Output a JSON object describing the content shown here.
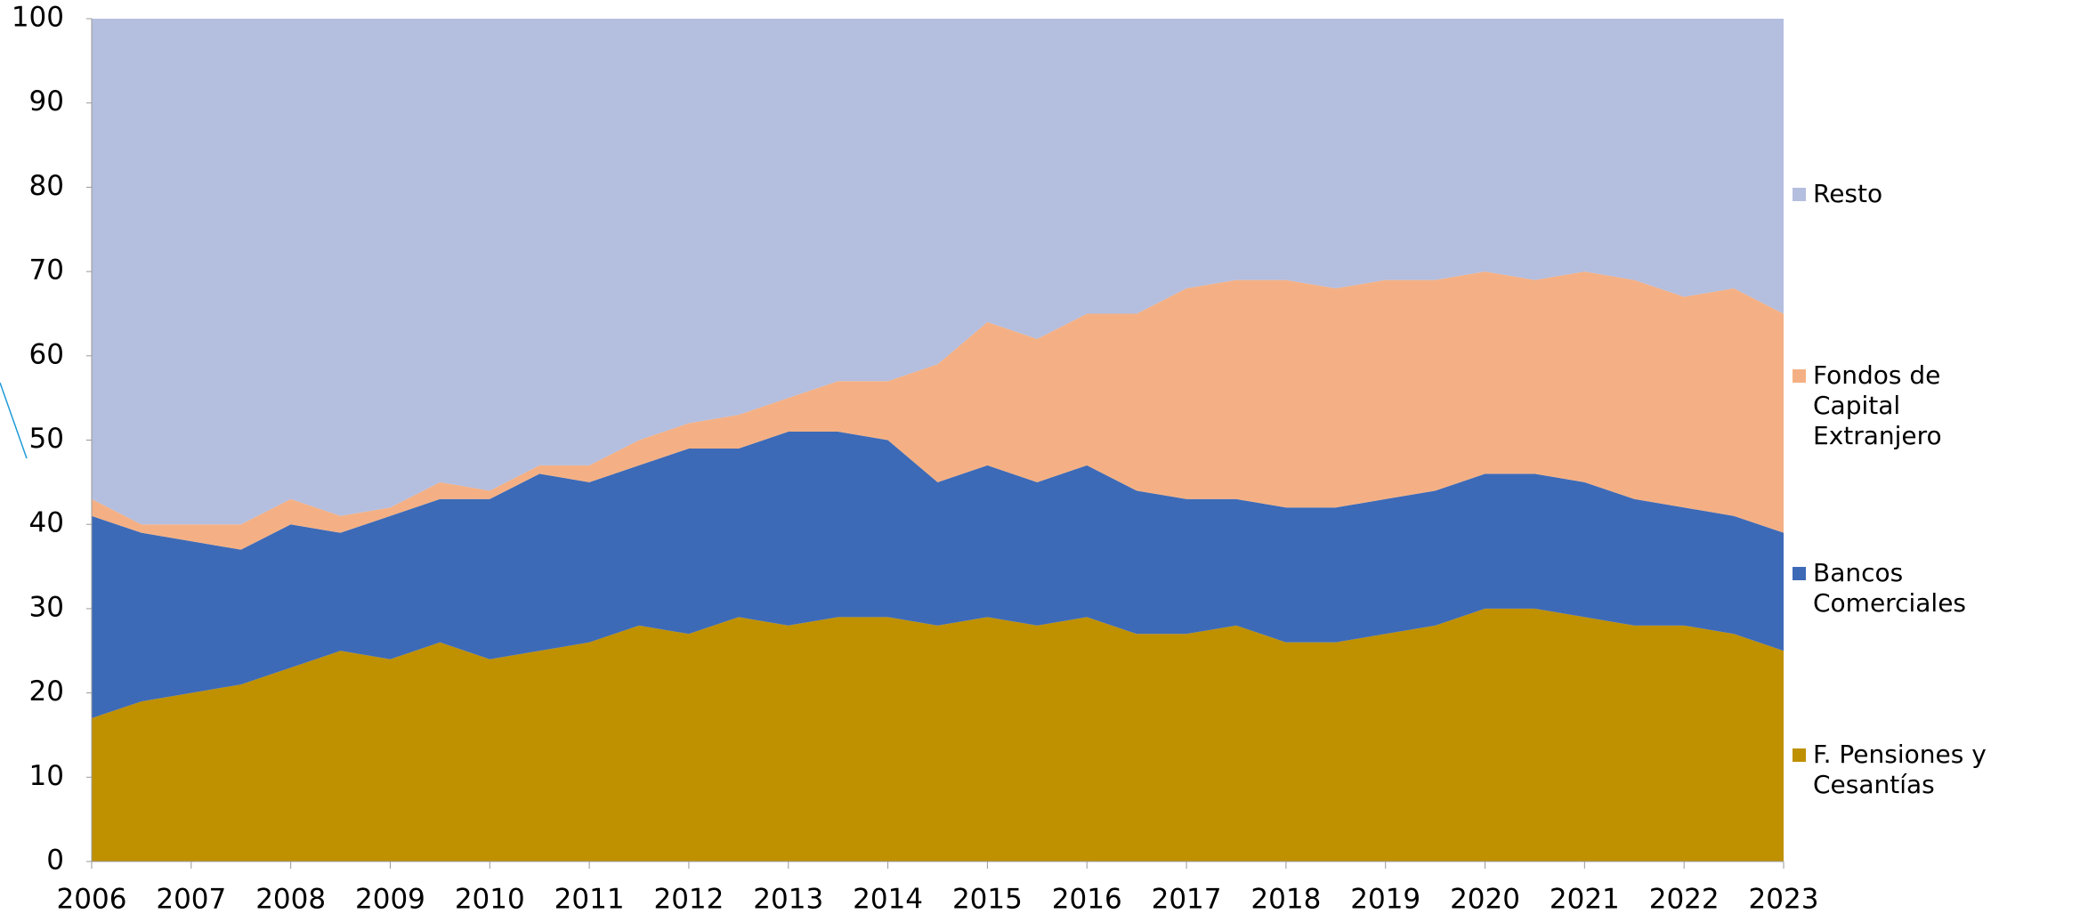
{
  "chart_data": {
    "type": "stacked-area",
    "x": [
      2006,
      2006.5,
      2007,
      2007.5,
      2008,
      2008.5,
      2009,
      2009.5,
      2010,
      2010.5,
      2011,
      2011.5,
      2012,
      2012.5,
      2013,
      2013.5,
      2014,
      2014.5,
      2015,
      2015.5,
      2016,
      2016.5,
      2017,
      2017.5,
      2018,
      2018.5,
      2019,
      2019.5,
      2020,
      2020.5,
      2021,
      2021.5,
      2022,
      2022.5,
      2023
    ],
    "series": [
      {
        "name": "F. Pensiones y Cesantías",
        "color": "#bf9000",
        "values": [
          17,
          19,
          20,
          21,
          23,
          25,
          24,
          26,
          24,
          25,
          26,
          28,
          27,
          29,
          28,
          29,
          29,
          28,
          29,
          28,
          29,
          27,
          27,
          28,
          26,
          26,
          27,
          28,
          30,
          30,
          29,
          28,
          28,
          27,
          25
        ]
      },
      {
        "name": "Bancos Comerciales",
        "color": "#3d6ab7",
        "values": [
          24,
          20,
          18,
          16,
          17,
          14,
          17,
          17,
          19,
          21,
          19,
          19,
          22,
          20,
          23,
          22,
          21,
          17,
          18,
          17,
          18,
          17,
          16,
          15,
          16,
          16,
          16,
          16,
          16,
          16,
          16,
          15,
          14,
          14,
          14
        ]
      },
      {
        "name": "Fondos de Capital Extranjero",
        "color": "#f4b084",
        "values": [
          2,
          1,
          2,
          3,
          3,
          2,
          1,
          2,
          1,
          1,
          2,
          3,
          3,
          4,
          4,
          6,
          7,
          14,
          17,
          17,
          18,
          21,
          25,
          26,
          27,
          26,
          26,
          25,
          24,
          23,
          25,
          26,
          25,
          27,
          26
        ]
      },
      {
        "name": "Resto",
        "color": "#b4bedf",
        "values": [
          57,
          60,
          60,
          60,
          57,
          59,
          58,
          55,
          56,
          53,
          53,
          50,
          48,
          47,
          45,
          43,
          43,
          41,
          36,
          38,
          35,
          35,
          32,
          31,
          31,
          32,
          31,
          31,
          30,
          31,
          30,
          31,
          33,
          32,
          35
        ]
      }
    ],
    "xlim": [
      2006,
      2023
    ],
    "xticks": [
      2006,
      2007,
      2008,
      2009,
      2010,
      2011,
      2012,
      2013,
      2014,
      2015,
      2016,
      2017,
      2018,
      2019,
      2020,
      2021,
      2022,
      2023
    ],
    "ylim": [
      0,
      100
    ],
    "yticks": [
      0,
      10,
      20,
      30,
      40,
      50,
      60,
      70,
      80,
      90,
      100
    ],
    "legend": "right"
  }
}
